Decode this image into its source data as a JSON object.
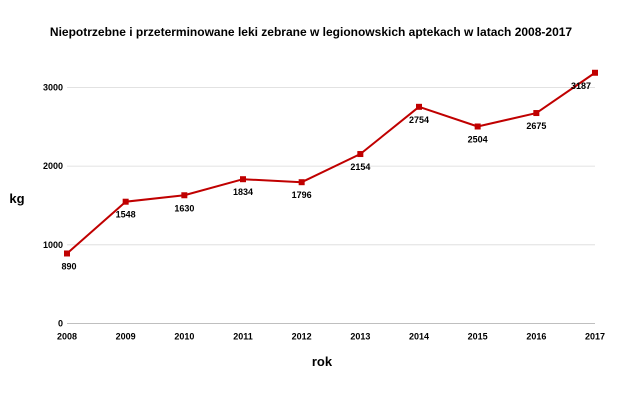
{
  "chart_data": {
    "type": "line",
    "title": "Niepotrzebne i przeterminowane leki zebrane w legionowskich aptekach w latach 2008-2017",
    "xlabel": "rok",
    "ylabel": "kg",
    "categories": [
      "2008",
      "2009",
      "2010",
      "2011",
      "2012",
      "2013",
      "2014",
      "2015",
      "2016",
      "2017"
    ],
    "series": [
      {
        "name": "kg",
        "values": [
          890,
          1548,
          1630,
          1834,
          1796,
          2154,
          2754,
          2504,
          2675,
          3187
        ]
      }
    ],
    "data_labels": [
      "890",
      "1548",
      "1630",
      "1834",
      "1796",
      "2154",
      "2754",
      "2504",
      "2675",
      "3187"
    ],
    "ylim": [
      0,
      3400
    ],
    "yticks": [
      0,
      1000,
      2000,
      3000
    ],
    "ytick_labels": [
      "0",
      "1000",
      "2000",
      "3000"
    ],
    "grid": true,
    "legend": "none",
    "line_color": "#c00000"
  }
}
